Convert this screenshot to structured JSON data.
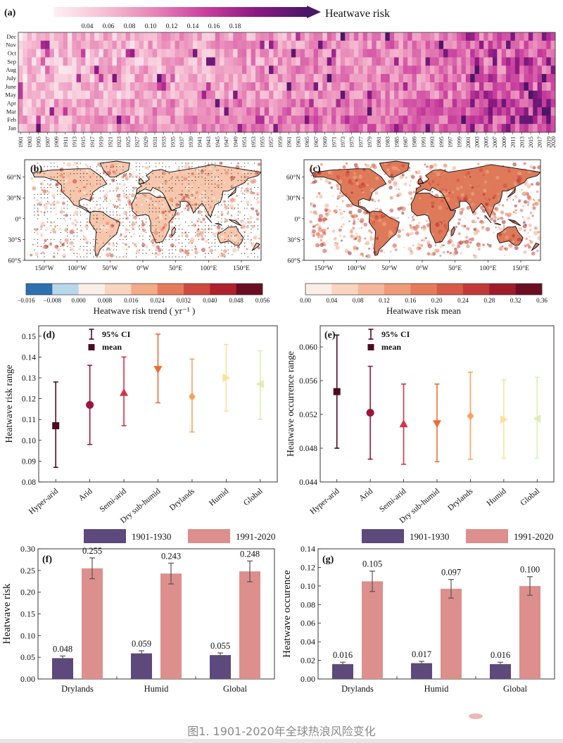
{
  "caption": "图1. 1901-2020年全球热浪风险变化",
  "colors": {
    "hyper_arid": "#4d0b20",
    "arid": "#9e1536",
    "semi_arid": "#d73249",
    "dry_sub_humid": "#f06c34",
    "drylands": "#f9a15f",
    "humid": "#fce19b",
    "global": "#d9f0b3",
    "period1": "#5d497b",
    "period2": "#dc8f8c"
  },
  "panel_a": {
    "label": "(a)",
    "colorbar_title": "Heatwave risk",
    "colorbar_ticks": [
      "0.04",
      "0.06",
      "0.08",
      "0.10",
      "0.12",
      "0.14",
      "0.16",
      "0.18"
    ],
    "months": [
      "Dec",
      "Nov",
      "Oct",
      "Sep",
      "Aug",
      "July",
      "June",
      "May",
      "Apr",
      "Mar",
      "Feb",
      "Jan"
    ],
    "year_start": 1901,
    "year_end": 2020
  },
  "panel_b": {
    "label": "(b)",
    "lat_ticks": [
      "60°N",
      "30°N",
      "0°",
      "30°S",
      "60°S"
    ],
    "lon_ticks": [
      "150°W",
      "100°W",
      "50°W",
      "0°W",
      "50°E",
      "100°E",
      "150°E"
    ],
    "colorbar_ticks": [
      "−0.016",
      "−0.008",
      "0.000",
      "0.008",
      "0.016",
      "0.024",
      "0.032",
      "0.040",
      "0.048",
      "0.056"
    ],
    "colorbar_colors": [
      "#2b71b0",
      "#b9d7ea",
      "#fbeee6",
      "#f9d4bf",
      "#f3ac88",
      "#e47c5c",
      "#cf4a3e",
      "#b0202d",
      "#6b0e22"
    ],
    "colorbar_title": "Heatwave risk trend ( yr⁻¹ )"
  },
  "panel_c": {
    "label": "(c)",
    "lat_ticks": [
      "60°N",
      "30°N",
      "0°",
      "30°S",
      "60°S"
    ],
    "lon_ticks": [
      "150°W",
      "100°W",
      "50°W",
      "0°W",
      "50°E",
      "100°E",
      "150°E"
    ],
    "colorbar_ticks": [
      "0.00",
      "0.04",
      "0.08",
      "0.12",
      "0.16",
      "0.20",
      "0.24",
      "0.28",
      "0.32",
      "0.36"
    ],
    "colorbar_colors": [
      "#fbeee6",
      "#f9d4bf",
      "#f5b79b",
      "#ef9a78",
      "#e47c5c",
      "#d65a47",
      "#c13a38",
      "#9e1c2c",
      "#6b0e22"
    ],
    "colorbar_title": "Heatwave risk mean"
  },
  "chart_data": [
    {
      "panel": "(d)",
      "type": "scatter",
      "ylabel": "Heatwave risk range",
      "ylim": [
        0.08,
        0.155
      ],
      "yticks": [
        "0.08",
        "0.09",
        "0.10",
        "0.11",
        "0.12",
        "0.13",
        "0.14",
        "0.15"
      ],
      "categories": [
        "Hyper-arid",
        "Arid",
        "Semi-arid",
        "Dry sub-humid",
        "Drylands",
        "Humid",
        "Global"
      ],
      "mean": [
        0.107,
        0.117,
        0.123,
        0.134,
        0.121,
        0.13,
        0.127
      ],
      "ci_low": [
        0.087,
        0.098,
        0.107,
        0.118,
        0.104,
        0.114,
        0.11
      ],
      "ci_high": [
        0.128,
        0.136,
        0.14,
        0.151,
        0.139,
        0.146,
        0.143
      ],
      "legend": [
        "95% CI",
        "mean"
      ]
    },
    {
      "panel": "(e)",
      "type": "scatter",
      "ylabel": "Heatwave occurrence range",
      "ylim": [
        0.044,
        0.0625
      ],
      "yticks": [
        "0.044",
        "0.048",
        "0.052",
        "0.056",
        "0.060"
      ],
      "categories": [
        "Hyper-arid",
        "Arid",
        "Semi-arid",
        "Dry sub-humid",
        "Drylands",
        "Humid",
        "Global"
      ],
      "mean": [
        0.0547,
        0.0522,
        0.0509,
        0.0509,
        0.0518,
        0.0514,
        0.0515
      ],
      "ci_low": [
        0.048,
        0.0467,
        0.0461,
        0.0464,
        0.0467,
        0.0468,
        0.0468
      ],
      "ci_high": [
        0.0614,
        0.0577,
        0.0556,
        0.0556,
        0.057,
        0.0561,
        0.0564
      ],
      "legend": [
        "95% CI",
        "mean"
      ]
    },
    {
      "panel": "(f)",
      "type": "bar",
      "ylabel": "Heatwave risk",
      "ylim": [
        0,
        0.3
      ],
      "yticks": [
        "0.00",
        "0.05",
        "0.10",
        "0.15",
        "0.20",
        "0.25",
        "0.30"
      ],
      "categories": [
        "Drylands",
        "Humid",
        "Global"
      ],
      "series": [
        {
          "name": "1901-1930",
          "values": [
            0.048,
            0.059,
            0.055
          ],
          "err": [
            0.005,
            0.006,
            0.005
          ],
          "labels": [
            "0.048",
            "0.059",
            "0.055"
          ]
        },
        {
          "name": "1991-2020",
          "values": [
            0.255,
            0.243,
            0.248
          ],
          "err": [
            0.024,
            0.024,
            0.024
          ],
          "labels": [
            "0.255",
            "0.243",
            "0.248"
          ]
        }
      ]
    },
    {
      "panel": "(g)",
      "type": "bar",
      "ylabel": "Heatwave occurence",
      "ylim": [
        0,
        0.14
      ],
      "yticks": [
        "0.00",
        "0.02",
        "0.04",
        "0.06",
        "0.08",
        "0.10",
        "0.12",
        "0.14"
      ],
      "categories": [
        "Drylands",
        "Humid",
        "Global"
      ],
      "series": [
        {
          "name": "1901-1930",
          "values": [
            0.016,
            0.017,
            0.016
          ],
          "err": [
            0.002,
            0.002,
            0.002
          ],
          "labels": [
            "0.016",
            "0.017",
            "0.016"
          ]
        },
        {
          "name": "1991-2020",
          "values": [
            0.105,
            0.097,
            0.1
          ],
          "err": [
            0.011,
            0.01,
            0.01
          ],
          "labels": [
            "0.105",
            "0.097",
            "0.100"
          ]
        }
      ]
    }
  ]
}
